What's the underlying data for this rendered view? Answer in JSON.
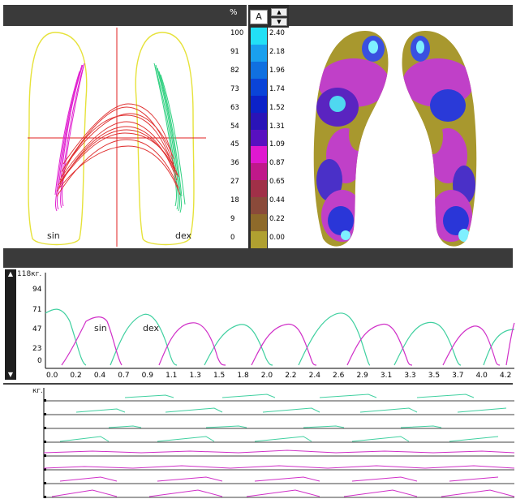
{
  "scale_header": {
    "percent_label": "%",
    "mode_label": "A",
    "up_icon": "triangle-up-icon",
    "down_icon": "triangle-down-icon"
  },
  "pressure_scale": {
    "percent_ticks": [
      "100",
      "91",
      "82",
      "73",
      "63",
      "54",
      "45",
      "36",
      "27",
      "18",
      "9",
      "0"
    ],
    "value_ticks": [
      "2.40",
      "2.18",
      "1.96",
      "1.74",
      "1.52",
      "1.31",
      "1.09",
      "0.87",
      "0.65",
      "0.44",
      "0.22",
      "0.00"
    ],
    "colors": [
      "#22e0f5",
      "#1aa0ee",
      "#1070e0",
      "#0a44d8",
      "#0c22c8",
      "#2a14b8",
      "#5810c0",
      "#e018d0",
      "#c0188a",
      "#a03048",
      "#8a4a3a",
      "#8e6a2a",
      "#b0a030"
    ],
    "bottom_value": "0"
  },
  "feet_trace": {
    "left_label": "sin",
    "right_label": "dex"
  },
  "force_chart": {
    "y_unit": "118кг.",
    "y_ticks": [
      "94",
      "71",
      "47",
      "23",
      "0"
    ],
    "x_ticks": [
      "0.0",
      "0.2",
      "0.4",
      "0.7",
      "0.9",
      "1.1",
      "1.3",
      "1.5",
      "1.8",
      "2.0",
      "2.2",
      "2.4",
      "2.6",
      "2.9",
      "3.1",
      "3.3",
      "3.5",
      "3.7",
      "4.0",
      "4.2"
    ],
    "series_labels": [
      "sin",
      "dex"
    ],
    "colors": {
      "sin": "#d030c8",
      "dex": "#40d0a0"
    }
  },
  "sensor_strips": {
    "unit_label": "кг."
  }
}
